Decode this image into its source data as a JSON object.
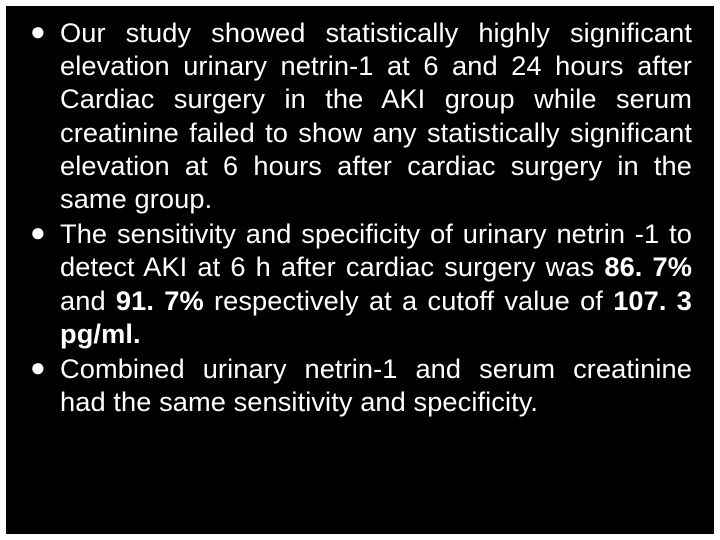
{
  "slide": {
    "background_color": "#000000",
    "text_color": "#ffffff",
    "font_family": "Arial",
    "bullets": [
      {
        "prefix": "Our study showed statistically highly significant elevation urinary netrin-1 at 6 and 24 hours after Cardiac surgery in the AKI group while serum creatinine failed to show any statistically significant elevation at 6 hours after cardiac surgery in the same group."
      },
      {
        "prefix": "The sensitivity and specificity of urinary netrin -1 to detect AKI  at 6 h after cardiac surgery was ",
        "bold1": "86. 7%",
        "mid1": " and ",
        "bold2": "91. 7%",
        "mid2": " respectively at a cutoff value of ",
        "bold3": "107. 3 pg/ml.",
        "suffix": ""
      },
      {
        "prefix": "Combined urinary netrin-1 and serum creatinine had the same  sensitivity and  specificity."
      }
    ]
  }
}
